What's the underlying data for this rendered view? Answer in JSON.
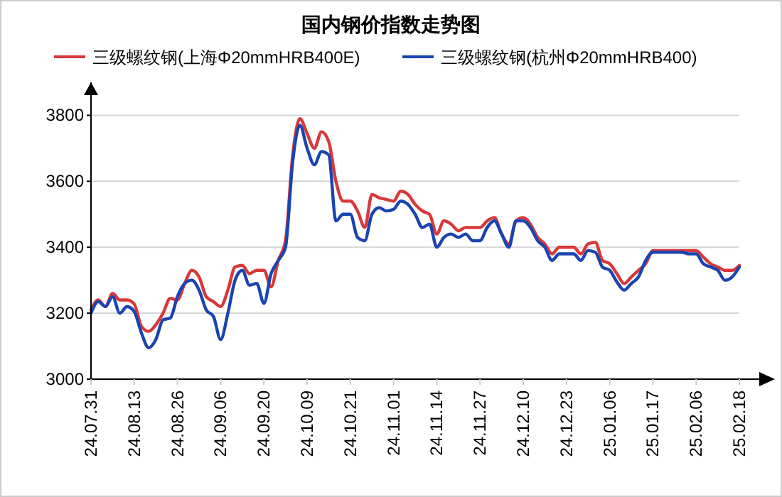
{
  "chart_data": {
    "type": "line",
    "title": "国内钢价指数走势图",
    "categories": [
      "24.07.31",
      null,
      null,
      null,
      null,
      null,
      "24.08.13",
      null,
      null,
      null,
      null,
      null,
      "24.08.26",
      null,
      null,
      null,
      null,
      null,
      "24.09.06",
      null,
      null,
      null,
      null,
      null,
      "24.09.20",
      null,
      null,
      null,
      null,
      null,
      "24.10.09",
      null,
      null,
      null,
      null,
      null,
      "24.10.21",
      null,
      null,
      null,
      null,
      null,
      "24.11.01",
      null,
      null,
      null,
      null,
      null,
      "24.11.14",
      null,
      null,
      null,
      null,
      null,
      "24.11.27",
      null,
      null,
      null,
      null,
      null,
      "24.12.10",
      null,
      null,
      null,
      null,
      null,
      "24.12.23",
      null,
      null,
      null,
      null,
      null,
      "25.01.06",
      null,
      null,
      null,
      null,
      null,
      "25.01.17",
      null,
      null,
      null,
      null,
      null,
      "25.02.06",
      null,
      null,
      null,
      null,
      null,
      "25.02.18"
    ],
    "series": [
      {
        "name": "三级螺纹钢(上海Φ20mmHRB400E)",
        "color": "#d9383a",
        "values": [
          3210,
          3240,
          3220,
          3260,
          3240,
          3240,
          3228,
          3160,
          3145,
          3165,
          3200,
          3245,
          3240,
          3290,
          3330,
          3310,
          3250,
          3235,
          3220,
          3270,
          3340,
          3345,
          3320,
          3330,
          3330,
          3280,
          3360,
          3420,
          3680,
          3790,
          3745,
          3700,
          3750,
          3720,
          3600,
          3540,
          3540,
          3510,
          3460,
          3560,
          3550,
          3545,
          3540,
          3570,
          3560,
          3530,
          3510,
          3500,
          3440,
          3480,
          3470,
          3450,
          3460,
          3460,
          3460,
          3480,
          3490,
          3440,
          3410,
          3480,
          3490,
          3470,
          3430,
          3410,
          3380,
          3400,
          3400,
          3400,
          3380,
          3410,
          3415,
          3360,
          3350,
          3320,
          3290,
          3310,
          3330,
          3350,
          3390,
          3390,
          3390,
          3390,
          3390,
          3390,
          3390,
          3370,
          3350,
          3340,
          3330,
          3330,
          3345
        ]
      },
      {
        "name": "三级螺纹钢(杭州Φ20mmHRB400)",
        "color": "#1a44b0",
        "values": [
          3200,
          3235,
          3220,
          3250,
          3200,
          3220,
          3205,
          3140,
          3095,
          3120,
          3180,
          3185,
          3250,
          3290,
          3300,
          3270,
          3210,
          3190,
          3120,
          3200,
          3300,
          3330,
          3285,
          3290,
          3230,
          3320,
          3360,
          3400,
          3660,
          3770,
          3700,
          3650,
          3690,
          3680,
          3480,
          3500,
          3500,
          3430,
          3420,
          3500,
          3520,
          3510,
          3515,
          3540,
          3530,
          3500,
          3460,
          3470,
          3400,
          3430,
          3440,
          3430,
          3440,
          3420,
          3420,
          3460,
          3480,
          3440,
          3400,
          3480,
          3480,
          3460,
          3420,
          3400,
          3360,
          3380,
          3380,
          3380,
          3360,
          3390,
          3385,
          3340,
          3330,
          3295,
          3270,
          3290,
          3310,
          3360,
          3385,
          3385,
          3385,
          3385,
          3385,
          3380,
          3380,
          3350,
          3340,
          3330,
          3300,
          3310,
          3340
        ]
      }
    ],
    "ylim": [
      3000,
      3900
    ],
    "yticks": [
      3000,
      3200,
      3400,
      3600,
      3800
    ],
    "grid": "y",
    "legend": "top",
    "line_style": "solid",
    "marker": "none"
  }
}
